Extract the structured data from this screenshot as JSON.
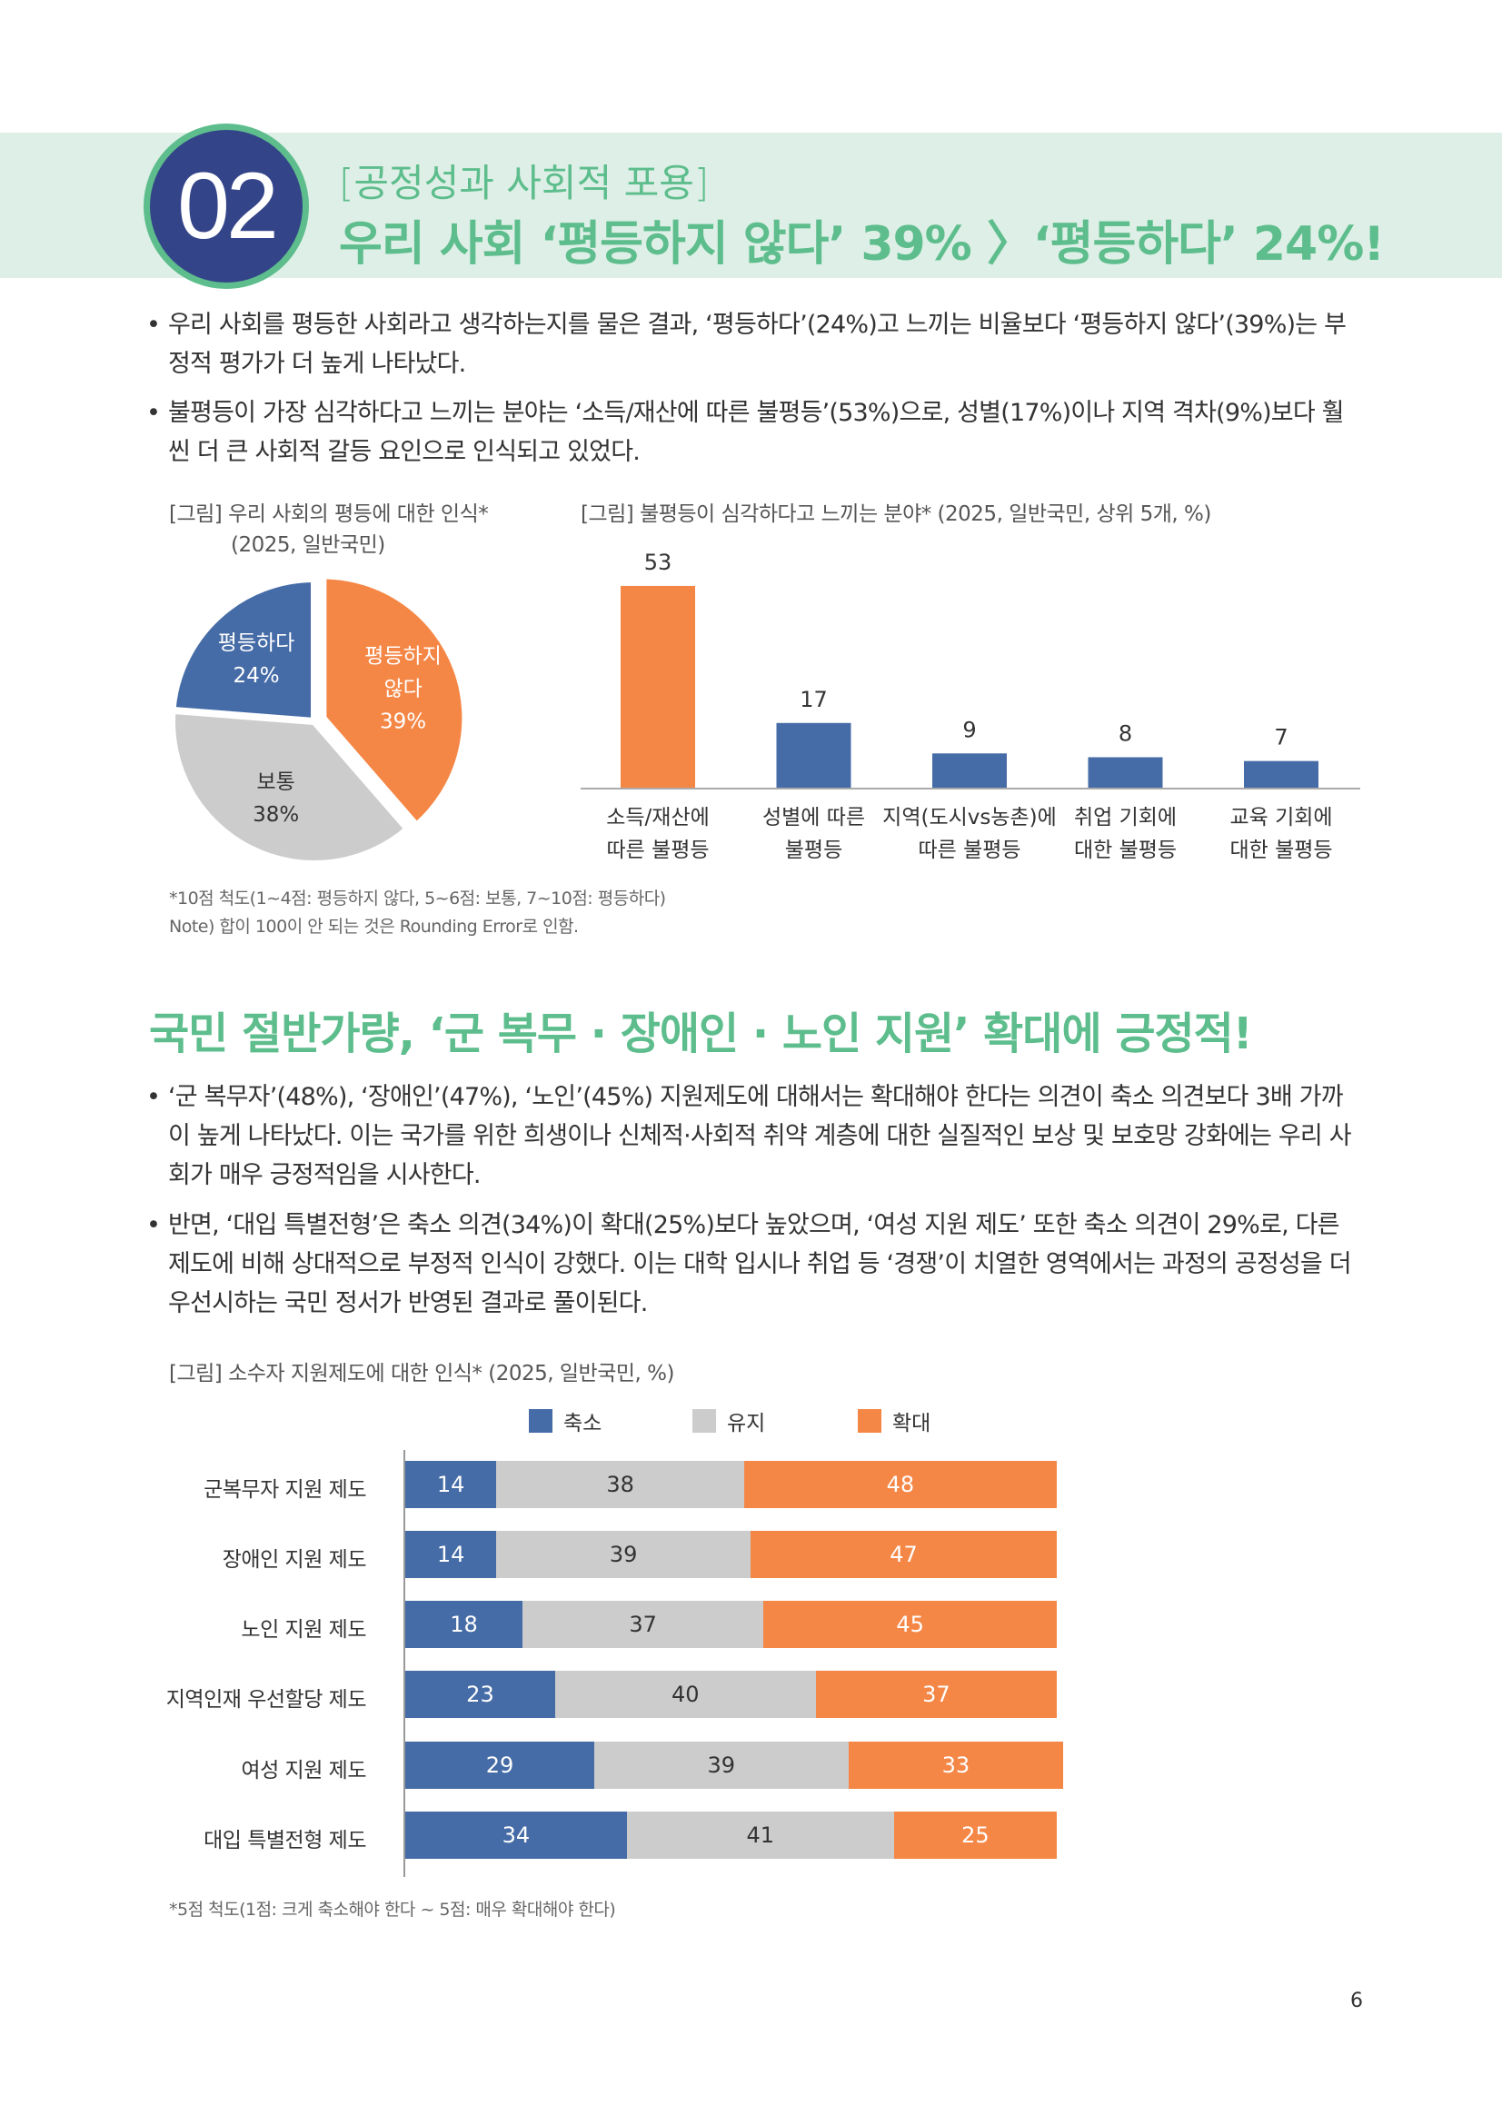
{
  "header": {
    "number": "02",
    "subtitle": "[공정성과 사회적 포용]",
    "title": "우리 사회 ‘평등하지 않다’ 39% 〉‘평등하다’ 24%!"
  },
  "bullets1": [
    "우리 사회를 평등한 사회라고 생각하는지를 물은 결과, ‘평등하다’(24%)고 느끼는 비율보다 ‘평등하지 않다’(39%)는 부정적 평가가 더 높게 나타났다.",
    "불평등이 가장 심각하다고 느끼는 분야는 ‘소득/재산에 따른 불평등’(53%)으로, 성별(17%)이나 지역 격차(9%)보다 훨씬 더 큰 사회적 갈등 요인으로 인식되고 있었다."
  ],
  "section2_title": "국민 절반가량, ‘군 복무 · 장애인 · 노인 지원’ 확대에 긍정적!",
  "bullets2": [
    "‘군 복무자’(48%), ‘장애인’(47%), ‘노인’(45%) 지원제도에 대해서는 확대해야 한다는 의견이 축소 의견보다 3배 가까이 높게 나타났다. 이는 국가를 위한 희생이나 신체적·사회적 취약 계층에 대한 실질적인 보상 및 보호망 강화에는 우리 사회가 매우 긍정적임을 시사한다.",
    "반면, ‘대입 특별전형’은 축소 의견(34%)이 확대(25%)보다 높았으며, ‘여성 지원 제도’ 또한 축소 의견이 29%로, 다른 제도에 비해 상대적으로 부정적 인식이 강했다. 이는 대학 입시나 취업 등 ‘경쟁’이 치열한 영역에서는 과정의 공정성을 더 우선시하는 국민 정서가 반영된 결과로 풀이된다."
  ],
  "colors": {
    "blue": "#466ca7",
    "orange": "#f58746",
    "gray": "#cccccc",
    "green": "#5dbd8c",
    "navy": "#344488"
  },
  "chart_data": [
    {
      "type": "pie",
      "title_line1": "[그림] 우리 사회의 평등에 대한 인식*",
      "title_line2": "(2025, 일반국민)",
      "slices": [
        {
          "label": "평등하지 않다",
          "label_line1": "평등하지",
          "label_line2": "않다",
          "value": 39,
          "value_label": "39%",
          "color": "#f58746"
        },
        {
          "label": "보통",
          "label_line1": "보통",
          "value": 38,
          "value_label": "38%",
          "color": "#cccccc"
        },
        {
          "label": "평등하다",
          "label_line1": "평등하다",
          "value": 24,
          "value_label": "24%",
          "color": "#466ca7"
        }
      ],
      "notes": [
        "*10점 척도(1~4점: 평등하지 않다, 5~6점: 보통, 7~10점: 평등하다)",
        "Note) 합이 100이 안 되는 것은 Rounding Error로 인함."
      ]
    },
    {
      "type": "bar",
      "title": "[그림] 불평등이 심각하다고 느끼는 분야* (2025, 일반국민, 상위 5개, %)",
      "categories": [
        [
          "소득/재산에",
          "따른 불평등"
        ],
        [
          "성별에 따른",
          "불평등"
        ],
        [
          "지역(도시vs농촌)에",
          "따른 불평등"
        ],
        [
          "취업 기회에",
          "대한 불평등"
        ],
        [
          "교육 기회에",
          "대한 불평등"
        ]
      ],
      "values": [
        53,
        17,
        9,
        8,
        7
      ],
      "colors": [
        "#f58746",
        "#466ca7",
        "#466ca7",
        "#466ca7",
        "#466ca7"
      ]
    },
    {
      "type": "bar",
      "orientation": "horizontal",
      "stacked": true,
      "title": "[그림] 소수자 지원제도에 대한 인식* (2025, 일반국민, %)",
      "legend_position": "top",
      "categories": [
        "군복무자 지원 제도",
        "장애인 지원 제도",
        "노인 지원 제도",
        "지역인재 우선할당 제도",
        "여성 지원 제도",
        "대입 특별전형 제도"
      ],
      "series": [
        {
          "name": "축소",
          "color": "#466ca7",
          "values": [
            14,
            14,
            18,
            23,
            29,
            34
          ]
        },
        {
          "name": "유지",
          "color": "#cccccc",
          "values": [
            38,
            39,
            37,
            40,
            39,
            41
          ]
        },
        {
          "name": "확대",
          "color": "#f58746",
          "values": [
            48,
            47,
            45,
            37,
            33,
            25
          ]
        }
      ],
      "note": "*5점 척도(1점: 크게 축소해야 한다 ~ 5점: 매우 확대해야 한다)"
    }
  ],
  "page_number": "6"
}
